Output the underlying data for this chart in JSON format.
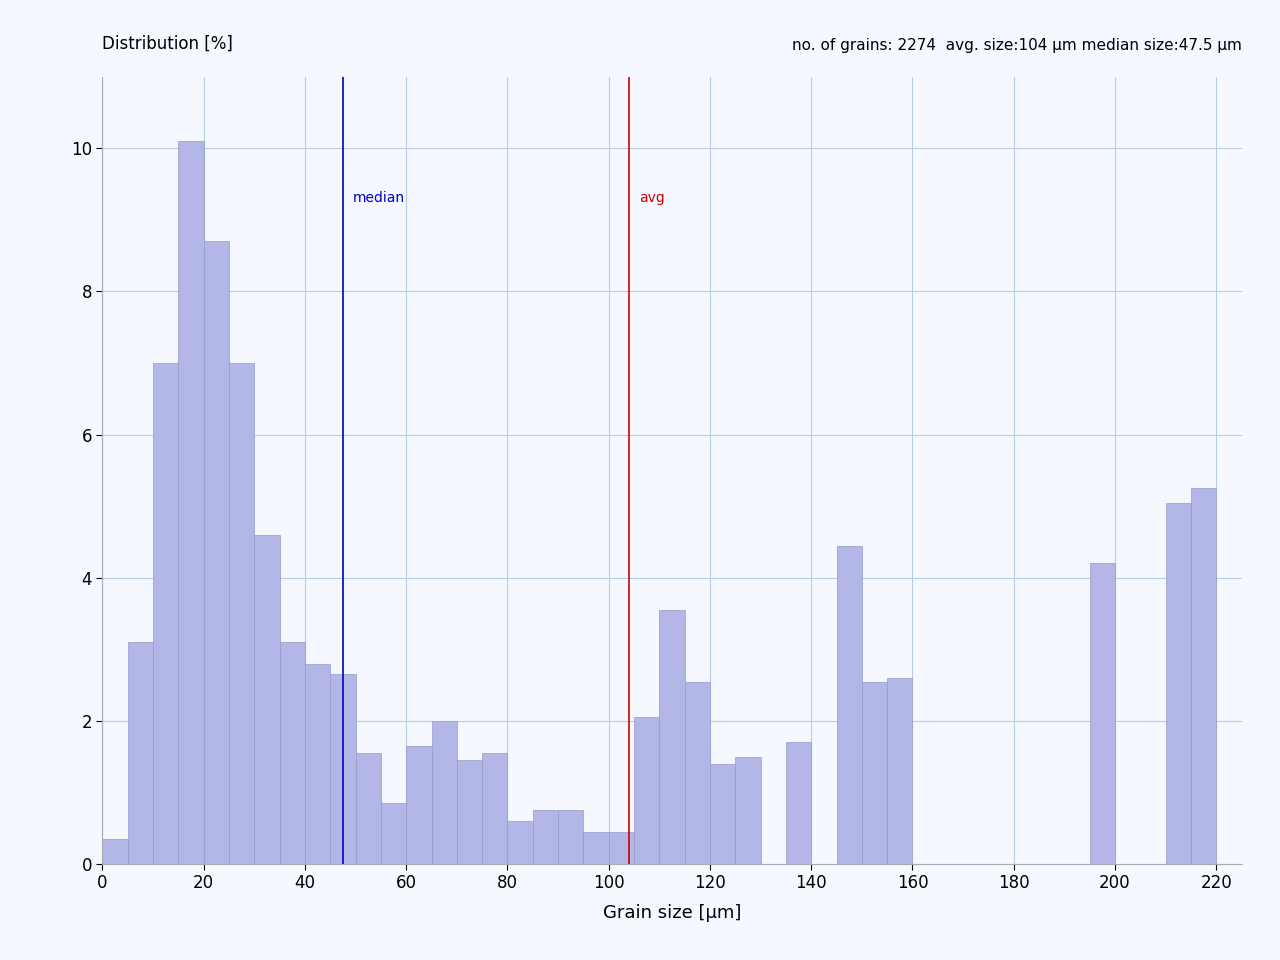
{
  "title_left": "Distribution [%]",
  "title_right": "no. of grains: 2274  avg. size:104 μm median size:47.5 μm",
  "xlabel": "Grain size [μm]",
  "xlim": [
    0,
    225
  ],
  "ylim": [
    0,
    11
  ],
  "yticks": [
    0,
    2,
    4,
    6,
    8,
    10
  ],
  "xticks": [
    0,
    20,
    40,
    60,
    80,
    100,
    120,
    140,
    160,
    180,
    200,
    220
  ],
  "median_x": 47.5,
  "avg_x": 104,
  "bar_color": "#b3b7e8",
  "bar_edge_color": "#9999cc",
  "median_color": "#0000cc",
  "avg_color": "#cc0000",
  "background_color": "#f5f8ff",
  "grid_color": "#b8cce4",
  "bin_width": 5,
  "bar_data": [
    [
      0,
      0.35
    ],
    [
      5,
      3.1
    ],
    [
      10,
      7.0
    ],
    [
      15,
      10.1
    ],
    [
      20,
      8.7
    ],
    [
      25,
      7.0
    ],
    [
      30,
      4.6
    ],
    [
      35,
      3.1
    ],
    [
      40,
      2.8
    ],
    [
      45,
      2.65
    ],
    [
      50,
      1.55
    ],
    [
      55,
      0.85
    ],
    [
      60,
      1.65
    ],
    [
      65,
      2.0
    ],
    [
      70,
      1.45
    ],
    [
      75,
      1.55
    ],
    [
      80,
      0.6
    ],
    [
      85,
      0.75
    ],
    [
      90,
      0.75
    ],
    [
      95,
      0.45
    ],
    [
      100,
      0.45
    ],
    [
      105,
      2.05
    ],
    [
      110,
      3.55
    ],
    [
      115,
      2.55
    ],
    [
      120,
      1.4
    ],
    [
      125,
      1.5
    ],
    [
      130,
      0.0
    ],
    [
      135,
      1.7
    ],
    [
      140,
      0.0
    ],
    [
      145,
      4.45
    ],
    [
      150,
      2.55
    ],
    [
      155,
      2.6
    ],
    [
      160,
      0.0
    ],
    [
      165,
      0.0
    ],
    [
      170,
      0.0
    ],
    [
      175,
      0.0
    ],
    [
      180,
      0.0
    ],
    [
      185,
      0.0
    ],
    [
      190,
      0.0
    ],
    [
      195,
      4.2
    ],
    [
      200,
      0.0
    ],
    [
      205,
      0.0
    ],
    [
      210,
      5.05
    ],
    [
      215,
      5.25
    ]
  ]
}
